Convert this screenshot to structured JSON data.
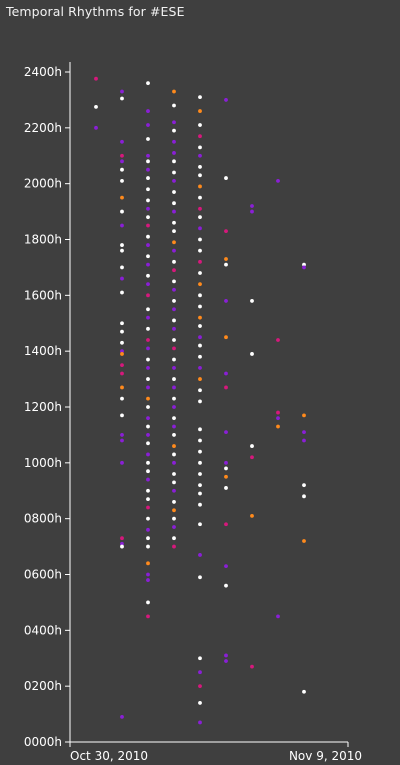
{
  "window": {
    "title": "Temporal Rhythms for #ESE"
  },
  "chart_data": {
    "type": "scatter",
    "title": "Temporal Rhythms for #ESE",
    "xlabel": "",
    "ylabel": "",
    "x_ticks": [
      "Oct 30, 2010",
      "Nov 9, 2010"
    ],
    "y_ticks": [
      "0000h",
      "0200h",
      "0400h",
      "0600h",
      "0800h",
      "1000h",
      "1200h",
      "1400h",
      "1600h",
      "1800h",
      "2000h",
      "2200h",
      "2400h"
    ],
    "xlim": [
      0,
      10
    ],
    "ylim": [
      0,
      24
    ],
    "grid": false,
    "colors": {
      "white": "#ffffff",
      "purple": "#8a1fd6",
      "magenta": "#d6187c",
      "orange": "#ff8a1c"
    },
    "points": [
      [
        1,
        23.76,
        "magenta"
      ],
      [
        1,
        22.75,
        "white"
      ],
      [
        1,
        22.0,
        "purple"
      ],
      [
        2,
        23.3,
        "purple"
      ],
      [
        2,
        23.05,
        "white"
      ],
      [
        2,
        21.5,
        "purple"
      ],
      [
        2,
        21.0,
        "magenta"
      ],
      [
        2,
        20.8,
        "purple"
      ],
      [
        2,
        20.5,
        "white"
      ],
      [
        2,
        20.1,
        "white"
      ],
      [
        2,
        19.5,
        "orange"
      ],
      [
        2,
        19.0,
        "white"
      ],
      [
        2,
        18.5,
        "purple"
      ],
      [
        2,
        17.8,
        "white"
      ],
      [
        2,
        17.6,
        "white"
      ],
      [
        2,
        17.0,
        "white"
      ],
      [
        2,
        16.6,
        "purple"
      ],
      [
        2,
        16.1,
        "white"
      ],
      [
        2,
        15.0,
        "white"
      ],
      [
        2,
        14.7,
        "white"
      ],
      [
        2,
        14.3,
        "white"
      ],
      [
        2,
        14.0,
        "purple"
      ],
      [
        2,
        13.9,
        "orange"
      ],
      [
        2,
        13.5,
        "magenta"
      ],
      [
        2,
        13.2,
        "magenta"
      ],
      [
        2,
        12.7,
        "orange"
      ],
      [
        2,
        12.3,
        "white"
      ],
      [
        2,
        11.7,
        "white"
      ],
      [
        2,
        11.0,
        "purple"
      ],
      [
        2,
        10.8,
        "purple"
      ],
      [
        2,
        10.0,
        "purple"
      ],
      [
        2,
        7.3,
        "magenta"
      ],
      [
        2,
        7.1,
        "purple"
      ],
      [
        2,
        7.0,
        "white"
      ],
      [
        2,
        0.9,
        "purple"
      ],
      [
        3,
        23.6,
        "white"
      ],
      [
        3,
        22.6,
        "purple"
      ],
      [
        3,
        22.1,
        "purple"
      ],
      [
        3,
        21.6,
        "white"
      ],
      [
        3,
        21.0,
        "purple"
      ],
      [
        3,
        20.8,
        "white"
      ],
      [
        3,
        20.5,
        "purple"
      ],
      [
        3,
        20.2,
        "white"
      ],
      [
        3,
        19.8,
        "white"
      ],
      [
        3,
        19.4,
        "white"
      ],
      [
        3,
        19.1,
        "purple"
      ],
      [
        3,
        18.8,
        "white"
      ],
      [
        3,
        18.5,
        "magenta"
      ],
      [
        3,
        18.1,
        "white"
      ],
      [
        3,
        17.8,
        "purple"
      ],
      [
        3,
        17.4,
        "white"
      ],
      [
        3,
        17.1,
        "purple"
      ],
      [
        3,
        16.7,
        "white"
      ],
      [
        3,
        16.4,
        "purple"
      ],
      [
        3,
        16.0,
        "magenta"
      ],
      [
        3,
        15.5,
        "white"
      ],
      [
        3,
        15.2,
        "purple"
      ],
      [
        3,
        14.8,
        "white"
      ],
      [
        3,
        14.4,
        "magenta"
      ],
      [
        3,
        14.1,
        "purple"
      ],
      [
        3,
        13.7,
        "white"
      ],
      [
        3,
        13.4,
        "purple"
      ],
      [
        3,
        13.0,
        "white"
      ],
      [
        3,
        12.7,
        "purple"
      ],
      [
        3,
        12.3,
        "orange"
      ],
      [
        3,
        12.0,
        "white"
      ],
      [
        3,
        11.6,
        "purple"
      ],
      [
        3,
        11.3,
        "white"
      ],
      [
        3,
        11.0,
        "purple"
      ],
      [
        3,
        10.7,
        "white"
      ],
      [
        3,
        10.3,
        "purple"
      ],
      [
        3,
        10.0,
        "white"
      ],
      [
        3,
        9.7,
        "white"
      ],
      [
        3,
        9.4,
        "purple"
      ],
      [
        3,
        9.0,
        "white"
      ],
      [
        3,
        8.7,
        "white"
      ],
      [
        3,
        8.4,
        "magenta"
      ],
      [
        3,
        8.0,
        "white"
      ],
      [
        3,
        7.6,
        "purple"
      ],
      [
        3,
        7.3,
        "white"
      ],
      [
        3,
        7.0,
        "white"
      ],
      [
        3,
        6.4,
        "orange"
      ],
      [
        3,
        6.0,
        "purple"
      ],
      [
        3,
        5.8,
        "purple"
      ],
      [
        3,
        5.0,
        "white"
      ],
      [
        3,
        4.5,
        "magenta"
      ],
      [
        4,
        23.3,
        "orange"
      ],
      [
        4,
        22.8,
        "white"
      ],
      [
        4,
        22.2,
        "purple"
      ],
      [
        4,
        21.9,
        "white"
      ],
      [
        4,
        21.5,
        "purple"
      ],
      [
        4,
        21.1,
        "purple"
      ],
      [
        4,
        20.8,
        "white"
      ],
      [
        4,
        20.4,
        "white"
      ],
      [
        4,
        20.1,
        "purple"
      ],
      [
        4,
        19.7,
        "white"
      ],
      [
        4,
        19.3,
        "white"
      ],
      [
        4,
        19.0,
        "purple"
      ],
      [
        4,
        18.6,
        "white"
      ],
      [
        4,
        18.3,
        "white"
      ],
      [
        4,
        17.9,
        "orange"
      ],
      [
        4,
        17.6,
        "purple"
      ],
      [
        4,
        17.2,
        "white"
      ],
      [
        4,
        16.9,
        "magenta"
      ],
      [
        4,
        16.5,
        "white"
      ],
      [
        4,
        16.2,
        "purple"
      ],
      [
        4,
        15.8,
        "white"
      ],
      [
        4,
        15.5,
        "purple"
      ],
      [
        4,
        15.1,
        "white"
      ],
      [
        4,
        14.8,
        "purple"
      ],
      [
        4,
        14.4,
        "white"
      ],
      [
        4,
        14.1,
        "magenta"
      ],
      [
        4,
        13.7,
        "white"
      ],
      [
        4,
        13.4,
        "purple"
      ],
      [
        4,
        13.0,
        "white"
      ],
      [
        4,
        12.7,
        "purple"
      ],
      [
        4,
        12.3,
        "white"
      ],
      [
        4,
        12.0,
        "purple"
      ],
      [
        4,
        11.6,
        "white"
      ],
      [
        4,
        11.3,
        "purple"
      ],
      [
        4,
        11.0,
        "white"
      ],
      [
        4,
        10.6,
        "orange"
      ],
      [
        4,
        10.3,
        "white"
      ],
      [
        4,
        10.0,
        "purple"
      ],
      [
        4,
        9.6,
        "white"
      ],
      [
        4,
        9.3,
        "white"
      ],
      [
        4,
        9.0,
        "purple"
      ],
      [
        4,
        8.6,
        "white"
      ],
      [
        4,
        8.3,
        "orange"
      ],
      [
        4,
        8.0,
        "white"
      ],
      [
        4,
        7.7,
        "purple"
      ],
      [
        4,
        7.3,
        "white"
      ],
      [
        4,
        7.0,
        "magenta"
      ],
      [
        5,
        23.1,
        "white"
      ],
      [
        5,
        22.6,
        "orange"
      ],
      [
        5,
        22.1,
        "white"
      ],
      [
        5,
        21.7,
        "magenta"
      ],
      [
        5,
        21.3,
        "white"
      ],
      [
        5,
        21.0,
        "purple"
      ],
      [
        5,
        20.6,
        "white"
      ],
      [
        5,
        20.3,
        "white"
      ],
      [
        5,
        19.9,
        "orange"
      ],
      [
        5,
        19.5,
        "white"
      ],
      [
        5,
        19.1,
        "magenta"
      ],
      [
        5,
        18.8,
        "white"
      ],
      [
        5,
        18.4,
        "purple"
      ],
      [
        5,
        18.0,
        "white"
      ],
      [
        5,
        17.6,
        "white"
      ],
      [
        5,
        17.2,
        "magenta"
      ],
      [
        5,
        16.8,
        "white"
      ],
      [
        5,
        16.4,
        "orange"
      ],
      [
        5,
        16.0,
        "white"
      ],
      [
        5,
        15.6,
        "white"
      ],
      [
        5,
        15.2,
        "orange"
      ],
      [
        5,
        14.9,
        "white"
      ],
      [
        5,
        14.5,
        "purple"
      ],
      [
        5,
        14.2,
        "white"
      ],
      [
        5,
        13.8,
        "white"
      ],
      [
        5,
        13.4,
        "purple"
      ],
      [
        5,
        13.0,
        "orange"
      ],
      [
        5,
        12.6,
        "white"
      ],
      [
        5,
        12.2,
        "white"
      ],
      [
        5,
        11.2,
        "white"
      ],
      [
        5,
        10.8,
        "white"
      ],
      [
        5,
        10.4,
        "white"
      ],
      [
        5,
        10.0,
        "white"
      ],
      [
        5,
        9.6,
        "white"
      ],
      [
        5,
        9.2,
        "white"
      ],
      [
        5,
        8.9,
        "white"
      ],
      [
        5,
        8.5,
        "white"
      ],
      [
        5,
        7.8,
        "white"
      ],
      [
        5,
        6.7,
        "purple"
      ],
      [
        5,
        5.9,
        "white"
      ],
      [
        5,
        3.0,
        "white"
      ],
      [
        5,
        2.5,
        "purple"
      ],
      [
        5,
        2.0,
        "magenta"
      ],
      [
        5,
        1.4,
        "white"
      ],
      [
        5,
        0.7,
        "purple"
      ],
      [
        6,
        23.0,
        "purple"
      ],
      [
        6,
        20.2,
        "white"
      ],
      [
        6,
        18.3,
        "magenta"
      ],
      [
        6,
        17.3,
        "orange"
      ],
      [
        6,
        17.1,
        "white"
      ],
      [
        6,
        15.8,
        "purple"
      ],
      [
        6,
        14.5,
        "orange"
      ],
      [
        6,
        13.2,
        "purple"
      ],
      [
        6,
        12.7,
        "magenta"
      ],
      [
        6,
        11.1,
        "purple"
      ],
      [
        6,
        10.0,
        "purple"
      ],
      [
        6,
        9.8,
        "white"
      ],
      [
        6,
        9.5,
        "orange"
      ],
      [
        6,
        9.1,
        "white"
      ],
      [
        6,
        7.8,
        "magenta"
      ],
      [
        6,
        6.3,
        "purple"
      ],
      [
        6,
        5.6,
        "white"
      ],
      [
        6,
        3.1,
        "purple"
      ],
      [
        6,
        2.9,
        "purple"
      ],
      [
        7,
        19.2,
        "purple"
      ],
      [
        7,
        19.0,
        "purple"
      ],
      [
        7,
        15.8,
        "white"
      ],
      [
        7,
        13.9,
        "white"
      ],
      [
        7,
        10.6,
        "white"
      ],
      [
        7,
        10.2,
        "magenta"
      ],
      [
        7,
        8.1,
        "orange"
      ],
      [
        7,
        2.7,
        "magenta"
      ],
      [
        8,
        20.1,
        "purple"
      ],
      [
        8,
        14.4,
        "magenta"
      ],
      [
        8,
        11.8,
        "magenta"
      ],
      [
        8,
        11.6,
        "purple"
      ],
      [
        8,
        11.3,
        "orange"
      ],
      [
        8,
        4.5,
        "purple"
      ],
      [
        9,
        17.1,
        "white"
      ],
      [
        9,
        17.0,
        "purple"
      ],
      [
        9,
        11.7,
        "orange"
      ],
      [
        9,
        11.1,
        "purple"
      ],
      [
        9,
        10.8,
        "purple"
      ],
      [
        9,
        9.2,
        "white"
      ],
      [
        9,
        8.8,
        "white"
      ],
      [
        9,
        7.2,
        "orange"
      ],
      [
        9,
        1.8,
        "white"
      ]
    ]
  }
}
